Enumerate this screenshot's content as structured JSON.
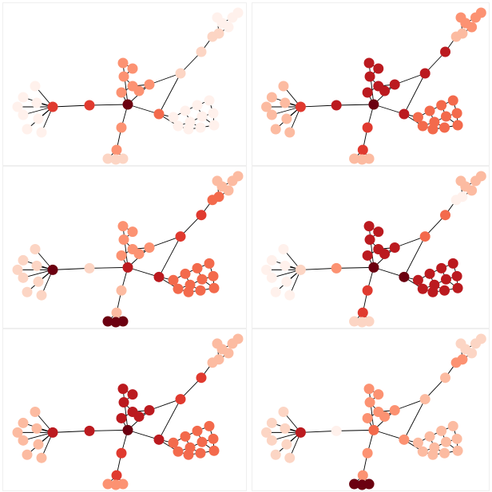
{
  "figure": {
    "description_colors": {
      "edge": "#000000",
      "background": "#ffffff"
    },
    "palette": [
      "#fff1ec",
      "#fcd5c4",
      "#fcbba1",
      "#fc9272",
      "#f36a4c",
      "#e03a2f",
      "#bb1a1f",
      "#6b0010"
    ],
    "node_levels_by_panel": [
      {
        "hub": 7,
        "leftHub": 5,
        "leftMid": 5,
        "leftLeaf": 0,
        "upMid": 3,
        "upper": 1,
        "upperLeaf": 0,
        "bottomMid": 3,
        "bottomLeaf": 1,
        "rightMid": 4,
        "rightCluster": 0,
        "topRight": 1
      },
      {
        "hub": 7,
        "leftHub": 5,
        "leftMid": 6,
        "leftLeaf": 2,
        "upMid": 6,
        "upper": 6,
        "upperLeaf": 3,
        "bottomMid": 5,
        "bottomLeaf": 2,
        "rightMid": 6,
        "rightCluster": 4,
        "topRight": 2
      },
      {
        "hub": 6,
        "leftHub": 7,
        "leftMid": 1,
        "leftLeaf": 1,
        "upMid": 3,
        "upper": 5,
        "upperLeaf": 2,
        "bottomMid": 2,
        "bottomLeaf": 7,
        "rightMid": 6,
        "rightCluster": 4,
        "topRight": 4
      },
      {
        "hub": 7,
        "leftHub": 1,
        "leftMid": 3,
        "leftLeaf": 0,
        "upMid": 6,
        "upper": 4,
        "upperLeaf": 2,
        "bottomMid": 5,
        "bottomLeaf": 1,
        "rightMid": 7,
        "rightCluster": 6,
        "topRight": 0
      },
      {
        "hub": 7,
        "leftHub": 6,
        "leftMid": 6,
        "leftLeaf": 2,
        "upMid": 6,
        "upper": 5,
        "upperLeaf": 2,
        "bottomMid": 5,
        "bottomLeaf": 3,
        "rightMid": 6,
        "rightCluster": 4,
        "topRight": 2
      },
      {
        "hub": 4,
        "leftHub": 6,
        "leftMid": 0,
        "leftLeaf": 1,
        "upMid": 3,
        "upper": 2,
        "upperLeaf": 1,
        "bottomMid": 3,
        "bottomLeaf": 7,
        "rightMid": 3,
        "rightCluster": 2,
        "topRight": 3
      }
    ]
  }
}
